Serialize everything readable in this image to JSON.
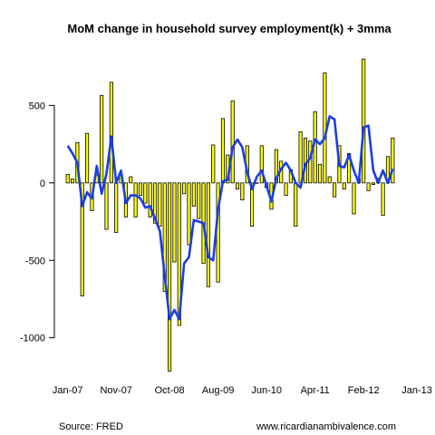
{
  "chart_data": {
    "type": "bar",
    "title": "MoM change in household survey employment(k) + 3mma",
    "xlabel": "",
    "ylabel": "",
    "ylim": [
      -1230,
      830
    ],
    "y_ticks": [
      500,
      0,
      -500,
      -1000
    ],
    "x_tick_labels": [
      "Jan-07",
      "Nov-07",
      "Oct-08",
      "Aug-09",
      "Jun-10",
      "Apr-11",
      "Feb-12",
      "Jan-13"
    ],
    "x_tick_index": [
      0,
      10,
      21,
      31,
      41,
      51,
      61,
      72
    ],
    "grid": false,
    "bar_color": "#ffff00",
    "bar_outline": "#000000",
    "line_color": "#1a3ee6",
    "series": [
      {
        "type": "bar",
        "values": [
          55,
          25,
          260,
          -730,
          320,
          -180,
          50,
          565,
          -300,
          650,
          -320,
          50,
          -220,
          40,
          -220,
          -80,
          -130,
          -220,
          -260,
          -280,
          -700,
          -1215,
          -510,
          -920,
          -70,
          -400,
          -150,
          -230,
          -520,
          -670,
          245,
          -640,
          415,
          180,
          530,
          -40,
          -110,
          240,
          -280,
          0,
          240,
          -30,
          -170,
          215,
          140,
          -80,
          85,
          -280,
          330,
          290,
          270,
          460,
          120,
          710,
          40,
          -90,
          240,
          -40,
          190,
          -200,
          30,
          800,
          -50,
          -10,
          30,
          -210,
          170,
          290
        ],
        "values_note": ""
      },
      {
        "type": "line",
        "values": [
          240,
          190,
          130,
          -150,
          -60,
          -100,
          110,
          -70,
          60,
          300,
          0,
          80,
          -130,
          -80,
          -80,
          -100,
          -160,
          -150,
          -230,
          -310,
          -600,
          -880,
          -820,
          -880,
          -520,
          -480,
          -240,
          -250,
          -260,
          -480,
          -500,
          -170,
          10,
          20,
          230,
          280,
          230,
          70,
          -40,
          40,
          80,
          -20,
          -120,
          30,
          90,
          130,
          80,
          0,
          -30,
          120,
          160,
          280,
          250,
          290,
          430,
          410,
          110,
          100,
          180,
          80,
          0,
          360,
          370,
          80,
          0,
          80,
          0,
          90
        ]
      }
    ],
    "source_text": "Source: FRED",
    "site_text": "www.ricardianambivalence.com"
  }
}
